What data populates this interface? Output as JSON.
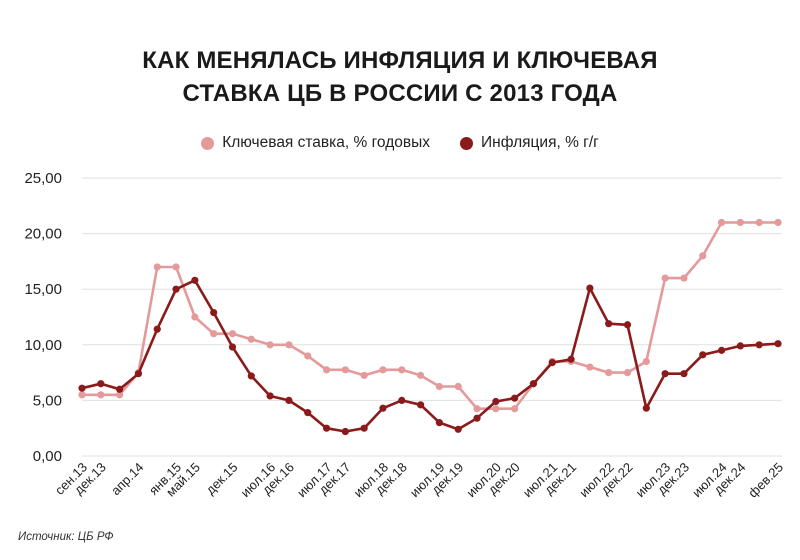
{
  "title_line1": "КАК МЕНЯЛАСЬ ИНФЛЯЦИЯ И КЛЮЧЕВАЯ",
  "title_line2": "СТАВКА ЦБ В РОССИИ С 2013 ГОДА",
  "source": "Источник: ЦБ РФ",
  "colors": {
    "key_rate": "#e49a9a",
    "inflation": "#8b1a1a",
    "grid": "#e0e0e0"
  },
  "chart_data": {
    "type": "line",
    "title": "КАК МЕНЯЛАСЬ ИНФЛЯЦИЯ И КЛЮЧЕВАЯ СТАВКА ЦБ В РОССИИ С 2013 ГОДА",
    "xlabel": "",
    "ylabel": "",
    "ylim": [
      0,
      25
    ],
    "yticks": [
      "0,00",
      "5,00",
      "10,00",
      "15,00",
      "20,00",
      "25,00"
    ],
    "ytick_values": [
      0,
      5,
      10,
      15,
      20,
      25
    ],
    "legend_position": "top-center",
    "x_labels": [
      "сен.13",
      "дек.13",
      "апр.14",
      "янв.15",
      "май.15",
      "дек.15",
      "июл.16",
      "дек.16",
      "июл.17",
      "дек.17",
      "июл.18",
      "дек.18",
      "июл.19",
      "дек.19",
      "июл.20",
      "дек.20",
      "июл.21",
      "дек.21",
      "июл.22",
      "дек.22",
      "июл.23",
      "дек.23",
      "июл.24",
      "дек.24",
      "фев.25"
    ],
    "x_label_index": [
      0,
      1,
      3,
      5,
      6,
      8,
      10,
      11,
      13,
      14,
      16,
      17,
      19,
      20,
      22,
      23,
      25,
      26,
      28,
      29,
      31,
      32,
      34,
      35,
      37
    ],
    "series": [
      {
        "name": "Ключевая ставка, % годовых",
        "color": "#e49a9a",
        "values": [
          5.5,
          5.5,
          5.5,
          7.5,
          17,
          17,
          12.5,
          11,
          11,
          10.5,
          10,
          10,
          9,
          7.75,
          7.75,
          7.25,
          7.75,
          7.75,
          7.25,
          6.25,
          6.25,
          4.25,
          4.25,
          4.25,
          6.5,
          8.5,
          8.5,
          8.0,
          7.5,
          7.5,
          8.5,
          16,
          16,
          18,
          21,
          21,
          21,
          21
        ]
      },
      {
        "name": "Инфляция, % г/г",
        "color": "#8b1a1a",
        "values": [
          6.1,
          6.5,
          6.0,
          7.4,
          11.4,
          15.0,
          15.8,
          12.9,
          9.8,
          7.2,
          5.4,
          5.0,
          3.9,
          2.5,
          2.2,
          2.5,
          4.3,
          5.0,
          4.6,
          3.0,
          2.4,
          3.4,
          4.9,
          5.2,
          6.5,
          8.4,
          8.7,
          15.1,
          11.9,
          11.8,
          4.3,
          7.4,
          7.4,
          9.1,
          9.5,
          9.9,
          10.0,
          10.1
        ]
      }
    ]
  }
}
